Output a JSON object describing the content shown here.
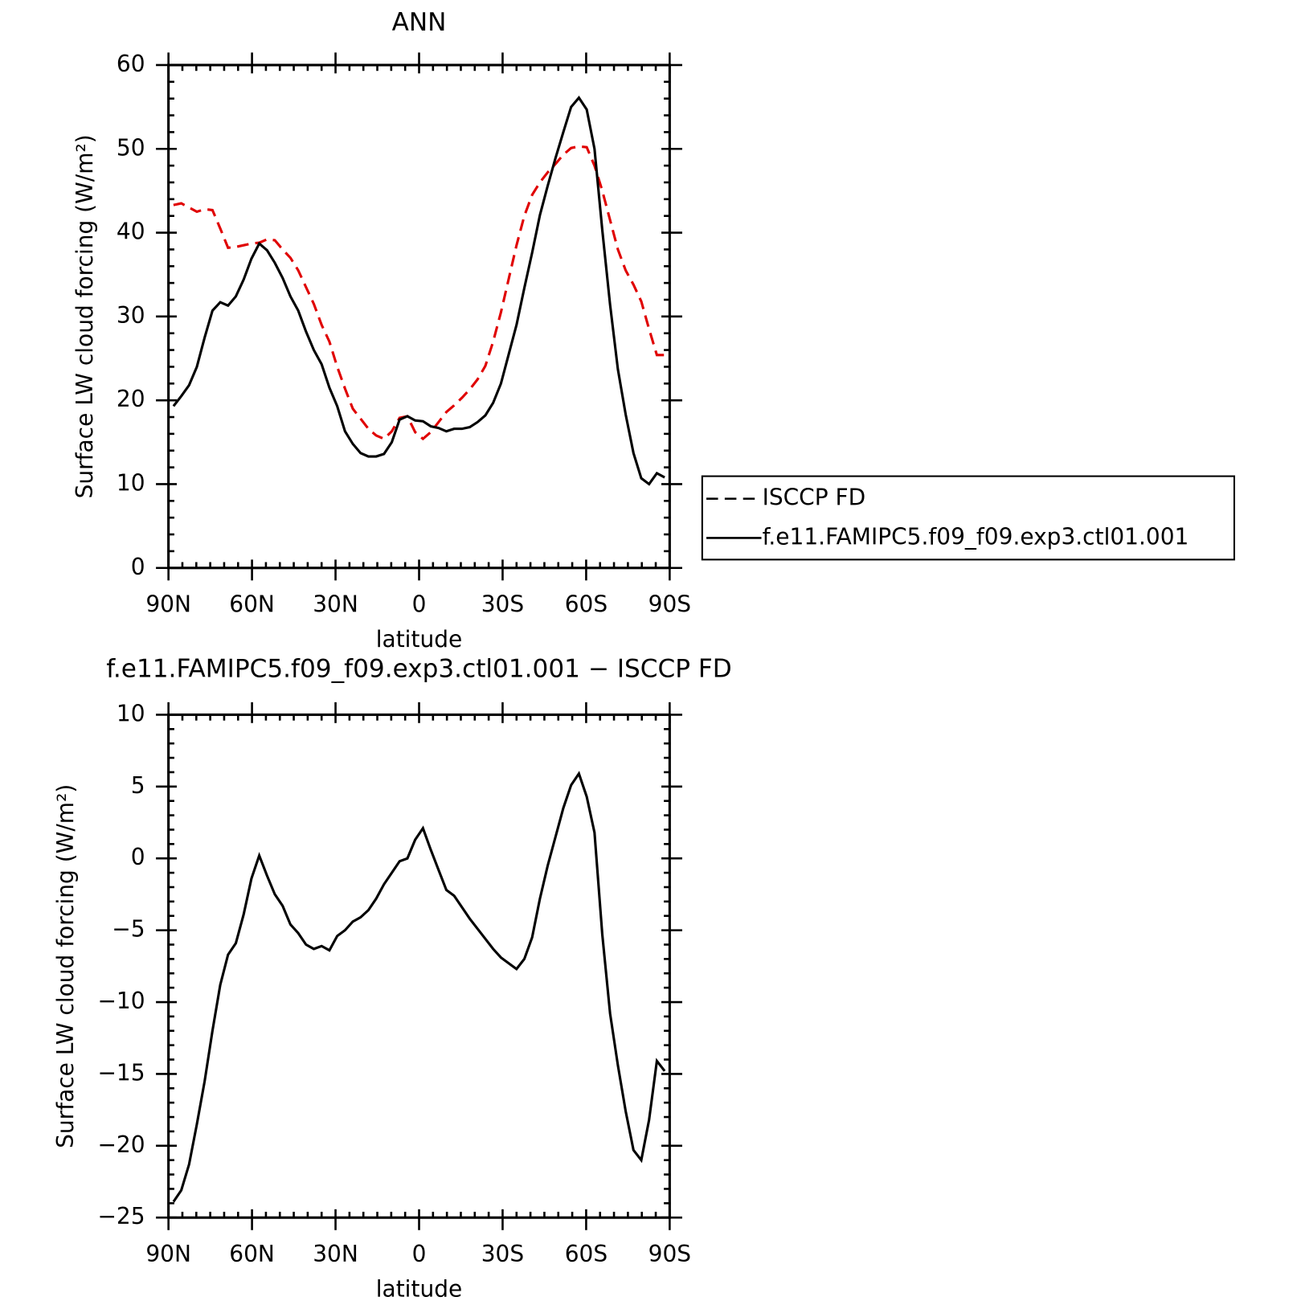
{
  "chart_data": [
    {
      "type": "line",
      "title": "ANN",
      "xlabel": "latitude",
      "ylabel": "Surface LW cloud forcing (W/m²)",
      "xlim": [
        90,
        -90
      ],
      "xticks": [
        {
          "value": 90,
          "label": "90N"
        },
        {
          "value": 60,
          "label": "60N"
        },
        {
          "value": 30,
          "label": "30N"
        },
        0,
        {
          "value": -30,
          "label": "30S"
        },
        {
          "value": -60,
          "label": "60S"
        },
        {
          "value": -90,
          "label": "90S"
        }
      ],
      "ylim": [
        0,
        60
      ],
      "yticks": [
        0,
        10,
        20,
        30,
        40,
        50,
        60
      ],
      "legend": "right",
      "x": [
        88.2,
        85.4,
        82.6,
        79.8,
        77.0,
        74.2,
        71.4,
        68.6,
        65.8,
        63.0,
        60.2,
        57.4,
        54.6,
        51.8,
        49.0,
        46.2,
        43.4,
        40.6,
        37.8,
        35.0,
        32.2,
        29.4,
        26.6,
        23.8,
        21.0,
        18.2,
        15.4,
        12.6,
        9.8,
        7.0,
        4.2,
        1.4,
        -1.4,
        -4.2,
        -7.0,
        -9.8,
        -12.6,
        -15.4,
        -18.2,
        -21.0,
        -23.8,
        -26.6,
        -29.4,
        -32.2,
        -35.0,
        -37.8,
        -40.6,
        -43.4,
        -46.2,
        -49.0,
        -51.8,
        -54.6,
        -57.4,
        -60.2,
        -63.0,
        -65.8,
        -68.6,
        -71.4,
        -74.2,
        -77.0,
        -79.8,
        -82.6,
        -85.4,
        -88.2
      ],
      "series": [
        {
          "name": "ISCCP FD",
          "color": "#e00000",
          "linestyle": "dashed",
          "values": [
            43.3,
            43.5,
            43.0,
            42.5,
            42.8,
            42.7,
            40.5,
            38.2,
            38.3,
            38.5,
            38.7,
            38.8,
            39.2,
            39.1,
            38.0,
            37.0,
            35.5,
            33.5,
            31.5,
            29.0,
            27.0,
            24.0,
            21.4,
            19.0,
            17.8,
            16.6,
            15.8,
            15.4,
            16.3,
            17.9,
            18.1,
            16.2,
            15.4,
            16.2,
            17.4,
            18.6,
            19.4,
            20.3,
            21.3,
            22.5,
            24.1,
            27.0,
            30.5,
            34.5,
            38.5,
            42.0,
            44.5,
            46.0,
            47.2,
            48.2,
            49.3,
            50.1,
            50.3,
            50.2,
            48.0,
            45.0,
            41.5,
            38.0,
            35.5,
            33.8,
            31.8,
            28.5,
            25.4,
            25.4
          ]
        },
        {
          "name": "f.e11.FAMIPC5.f09_f09.exp3.ctl01.001",
          "color": "#000000",
          "linestyle": "solid",
          "values": [
            19.3,
            20.5,
            21.8,
            24.0,
            27.5,
            30.7,
            31.7,
            31.3,
            32.4,
            34.4,
            36.9,
            38.7,
            37.9,
            36.4,
            34.6,
            32.4,
            30.7,
            28.2,
            26.0,
            24.3,
            21.5,
            19.3,
            16.3,
            14.8,
            13.7,
            13.3,
            13.3,
            13.6,
            15.0,
            17.7,
            18.1,
            17.6,
            17.5,
            16.9,
            16.7,
            16.3,
            16.6,
            16.6,
            16.8,
            17.4,
            18.2,
            19.7,
            22.0,
            25.5,
            29.0,
            33.4,
            37.6,
            42.1,
            45.6,
            48.9,
            52.0,
            55.0,
            56.1,
            54.7,
            50.0,
            40.3,
            31.4,
            23.7,
            18.3,
            13.7,
            10.7,
            10.0,
            11.3,
            10.8
          ]
        }
      ]
    },
    {
      "type": "line",
      "title": "f.e11.FAMIPC5.f09_f09.exp3.ctl01.001 − ISCCP FD",
      "xlabel": "latitude",
      "ylabel": "Surface LW cloud forcing (W/m²)",
      "xlim": [
        90,
        -90
      ],
      "xticks": [
        {
          "value": 90,
          "label": "90N"
        },
        {
          "value": 60,
          "label": "60N"
        },
        {
          "value": 30,
          "label": "30N"
        },
        0,
        {
          "value": -30,
          "label": "30S"
        },
        {
          "value": -60,
          "label": "60S"
        },
        {
          "value": -90,
          "label": "90S"
        }
      ],
      "ylim": [
        -25,
        10
      ],
      "yticks": [
        {
          "value": -25,
          "label": "−25"
        },
        {
          "value": -20,
          "label": "−20"
        },
        {
          "value": -15,
          "label": "−15"
        },
        {
          "value": -10,
          "label": "−10"
        },
        {
          "value": -5,
          "label": "−5"
        },
        0,
        5,
        10
      ],
      "x": [
        88.2,
        85.4,
        82.6,
        79.8,
        77.0,
        74.2,
        71.4,
        68.6,
        65.8,
        63.0,
        60.2,
        57.4,
        54.6,
        51.8,
        49.0,
        46.2,
        43.4,
        40.6,
        37.8,
        35.0,
        32.2,
        29.4,
        26.6,
        23.8,
        21.0,
        18.2,
        15.4,
        12.6,
        9.8,
        7.0,
        4.2,
        1.4,
        -1.4,
        -4.2,
        -7.0,
        -9.8,
        -12.6,
        -15.4,
        -18.2,
        -21.0,
        -23.8,
        -26.6,
        -29.4,
        -32.2,
        -35.0,
        -37.8,
        -40.6,
        -43.4,
        -46.2,
        -49.0,
        -51.8,
        -54.6,
        -57.4,
        -60.2,
        -63.0,
        -65.8,
        -68.6,
        -71.4,
        -74.2,
        -77.0,
        -79.8,
        -82.6,
        -85.4,
        -88.2
      ],
      "series": [
        {
          "color": "#000000",
          "linestyle": "solid",
          "values": [
            -23.9,
            -23.1,
            -21.3,
            -18.5,
            -15.5,
            -12.0,
            -8.8,
            -6.7,
            -5.9,
            -3.9,
            -1.4,
            0.2,
            -1.2,
            -2.5,
            -3.3,
            -4.6,
            -5.2,
            -6.0,
            -6.3,
            -6.1,
            -6.4,
            -5.4,
            -5.0,
            -4.4,
            -4.1,
            -3.6,
            -2.8,
            -1.8,
            -1.0,
            -0.2,
            0.0,
            1.3,
            2.1,
            0.6,
            -0.8,
            -2.2,
            -2.6,
            -3.4,
            -4.2,
            -4.9,
            -5.6,
            -6.3,
            -6.9,
            -7.3,
            -7.7,
            -7.0,
            -5.5,
            -2.8,
            -0.5,
            1.5,
            3.5,
            5.1,
            5.9,
            4.3,
            1.8,
            -5.3,
            -10.8,
            -14.4,
            -17.6,
            -20.3,
            -21.0,
            -18.2,
            -14.1,
            -14.8
          ]
        }
      ]
    }
  ]
}
